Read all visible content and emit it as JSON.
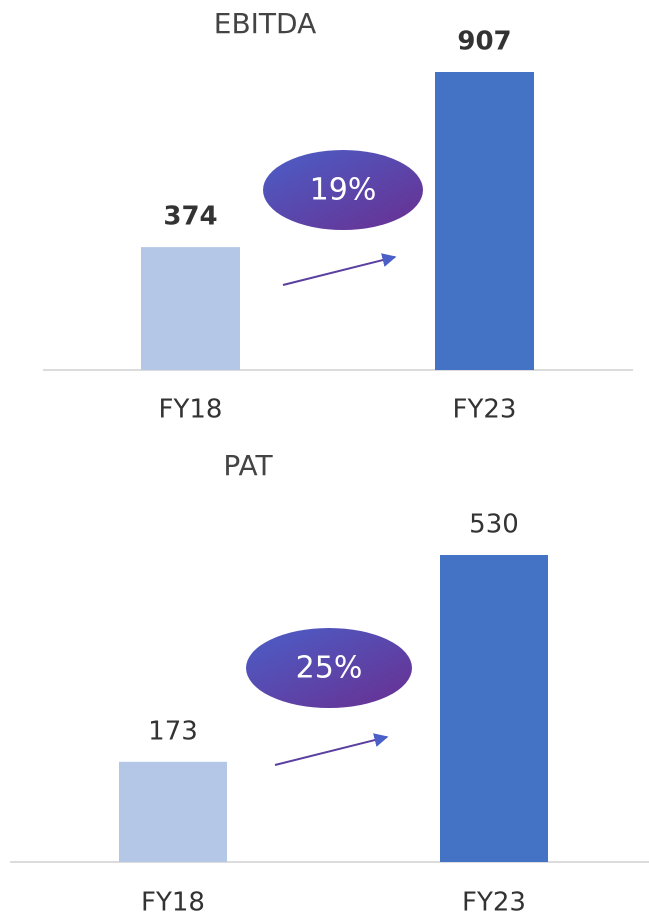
{
  "chart_data": [
    {
      "type": "bar",
      "title": "EBITDA",
      "categories": [
        "FY18",
        "FY23"
      ],
      "values": [
        374,
        907
      ],
      "colors": [
        "#b4c7e7",
        "#4472c4"
      ],
      "annotation": "19%",
      "bold_labels": true
    },
    {
      "type": "bar",
      "title": "PAT",
      "categories": [
        "FY18",
        "FY23"
      ],
      "values": [
        173,
        530
      ],
      "colors": [
        "#b4c7e7",
        "#4472c4"
      ],
      "annotation": "25%",
      "bold_labels": false
    }
  ]
}
